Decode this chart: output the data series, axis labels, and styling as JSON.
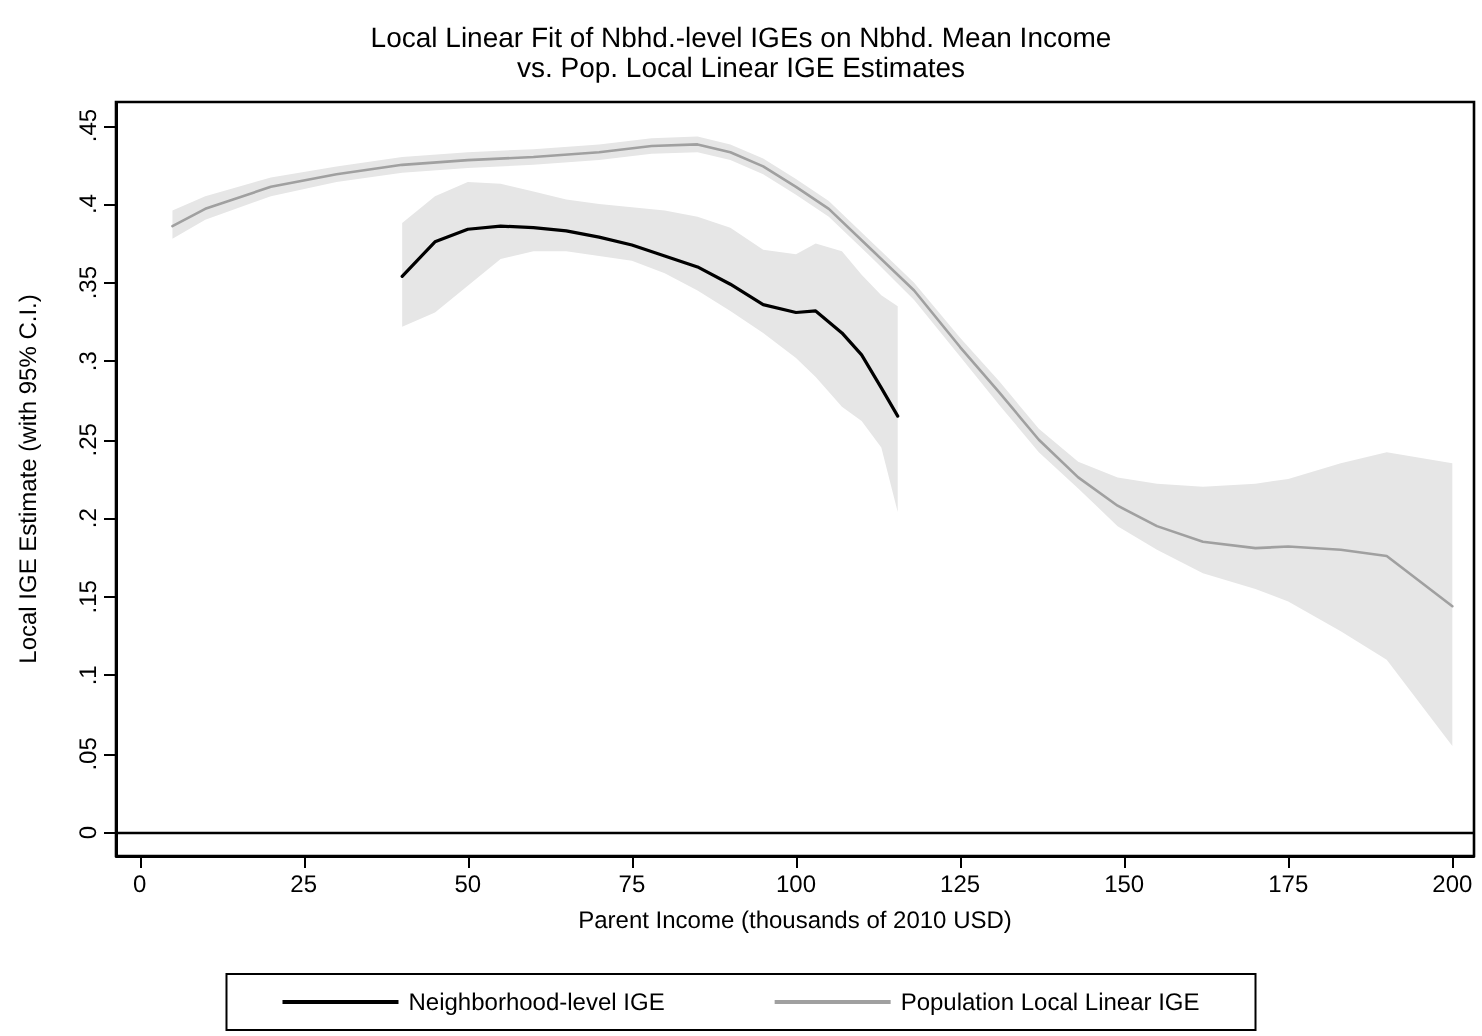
{
  "chart_data": {
    "type": "line",
    "title": "Local Linear Fit of Nbhd.-level IGEs on Nbhd. Mean Income\nvs. Pop. Local Linear IGE Estimates",
    "xlabel": "Parent Income (thousands of 2010 USD)",
    "ylabel": "Local IGE Estimate (with 95% C.I.)",
    "xlim": [
      -3.6,
      203.3
    ],
    "ylim": [
      -0.015,
      0.465
    ],
    "xticks": [
      0,
      25,
      50,
      75,
      100,
      125,
      150,
      175,
      200
    ],
    "yticks": [
      0,
      {
        "value": 0.05,
        "label": ".05"
      },
      {
        "value": 0.1,
        "label": ".1"
      },
      {
        "value": 0.15,
        "label": ".15"
      },
      {
        "value": 0.2,
        "label": ".2"
      },
      {
        "value": 0.25,
        "label": ".25"
      },
      {
        "value": 0.3,
        "label": ".3"
      },
      {
        "value": 0.35,
        "label": ".35"
      },
      {
        "value": 0.4,
        "label": ".4"
      },
      {
        "value": 0.45,
        "label": ".45"
      }
    ],
    "grid": false,
    "legend": "bottom",
    "marker": "none",
    "line_style": "solid",
    "ref_lines": [
      {
        "axis": "y",
        "value": 0,
        "label": null,
        "color": "#000000"
      }
    ],
    "series": [
      {
        "name": "Neighborhood-level IGE",
        "color": "#000000",
        "x": [
          40,
          45,
          50,
          55,
          60,
          65,
          70,
          75,
          80,
          85,
          90,
          95,
          100,
          103,
          107,
          110,
          113,
          115.5
        ],
        "values": [
          0.354,
          0.376,
          0.384,
          0.386,
          0.385,
          0.383,
          0.379,
          0.374,
          0.367,
          0.36,
          0.349,
          0.336,
          0.331,
          0.332,
          0.318,
          0.304,
          0.283,
          0.265
        ],
        "upper": [
          0.388,
          0.405,
          0.414,
          0.413,
          0.408,
          0.403,
          0.4,
          0.398,
          0.396,
          0.392,
          0.385,
          0.371,
          0.368,
          0.375,
          0.37,
          0.355,
          0.342,
          0.335
        ],
        "lower": [
          0.322,
          0.331,
          0.348,
          0.365,
          0.37,
          0.37,
          0.367,
          0.364,
          0.356,
          0.345,
          0.332,
          0.318,
          0.302,
          0.29,
          0.271,
          0.262,
          0.245,
          0.204
        ]
      },
      {
        "name": "Population Local Linear IGE",
        "color": "#a0a0a0",
        "x": [
          5,
          10,
          20,
          30,
          40,
          50,
          60,
          70,
          78,
          85,
          90,
          95,
          100,
          105,
          112,
          118,
          125,
          131,
          137,
          143,
          149,
          155,
          162,
          170,
          175,
          183,
          190,
          200
        ],
        "values": [
          0.386,
          0.397,
          0.411,
          0.419,
          0.425,
          0.428,
          0.43,
          0.433,
          0.437,
          0.438,
          0.433,
          0.424,
          0.411,
          0.397,
          0.369,
          0.345,
          0.309,
          0.28,
          0.25,
          0.226,
          0.208,
          0.195,
          0.185,
          0.181,
          0.182,
          0.18,
          0.176,
          0.144
        ],
        "upper": [
          0.396,
          0.405,
          0.417,
          0.424,
          0.43,
          0.433,
          0.435,
          0.438,
          0.442,
          0.443,
          0.438,
          0.429,
          0.416,
          0.402,
          0.374,
          0.35,
          0.315,
          0.287,
          0.257,
          0.236,
          0.226,
          0.222,
          0.22,
          0.222,
          0.225,
          0.235,
          0.242,
          0.235
        ],
        "lower": [
          0.378,
          0.39,
          0.405,
          0.414,
          0.42,
          0.423,
          0.425,
          0.428,
          0.432,
          0.433,
          0.428,
          0.419,
          0.406,
          0.392,
          0.364,
          0.339,
          0.303,
          0.272,
          0.242,
          0.219,
          0.195,
          0.18,
          0.165,
          0.155,
          0.147,
          0.128,
          0.11,
          0.055
        ]
      }
    ]
  }
}
